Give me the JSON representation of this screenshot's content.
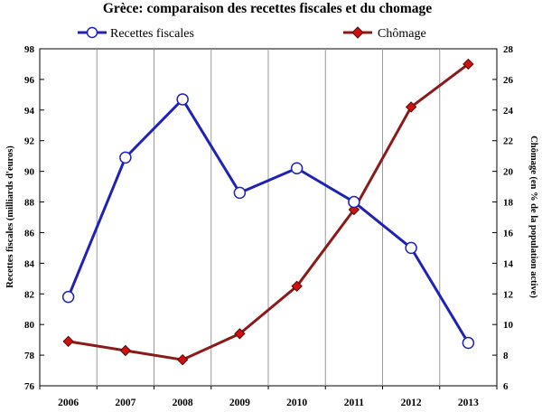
{
  "chart_data": {
    "type": "line",
    "title": "Grèce: comparaison des recettes fiscales et du chomage",
    "categories": [
      "2006",
      "2007",
      "2008",
      "2009",
      "2010",
      "2011",
      "2012",
      "2013"
    ],
    "series": [
      {
        "name": "Recettes fiscales",
        "axis": "left",
        "color": "#1f22b5",
        "marker": "circle-open",
        "values": [
          81.8,
          90.9,
          94.7,
          88.6,
          90.2,
          88.0,
          85.0,
          78.8
        ]
      },
      {
        "name": "Chômage",
        "axis": "right",
        "color": "#8b1a1a",
        "marker": "diamond",
        "marker_color": "#cc1111",
        "values": [
          8.9,
          8.3,
          7.7,
          9.4,
          12.5,
          17.5,
          24.2,
          27.0
        ]
      }
    ],
    "y_left": {
      "label": "Recettes fiscales (milliards d'euros)",
      "range": [
        76,
        98
      ],
      "ticks": [
        "76",
        "78",
        "80",
        "82",
        "84",
        "86",
        "88",
        "90",
        "92",
        "94",
        "96",
        "98"
      ]
    },
    "y_right": {
      "label": "Chômage (en % de la population active)",
      "range": [
        6,
        28
      ],
      "ticks": [
        "6",
        "8",
        "10",
        "12",
        "14",
        "16",
        "18",
        "20",
        "22",
        "24",
        "26",
        "28"
      ]
    },
    "grid": "vertical",
    "legend": "top"
  }
}
